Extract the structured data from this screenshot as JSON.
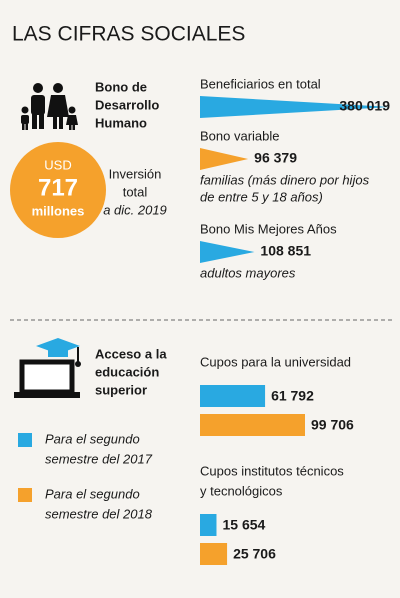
{
  "title": "LAS CIFRAS SOCIALES",
  "bono": {
    "name_lines": [
      "Bono de",
      "Desarrollo",
      "Humano"
    ],
    "investment": {
      "currency": "USD",
      "amount": 717,
      "unit": "millones"
    },
    "investment_note_lines": [
      "Inversión",
      "total",
      "a dic. 2019"
    ]
  },
  "beneficiaries": [
    {
      "label": "Beneficiarios en total",
      "value": {
        "value": 380019,
        "label": "380 019"
      },
      "color": "#29a9e1",
      "note_lines": []
    },
    {
      "label": "Bono variable",
      "value": {
        "value": 96379,
        "label": "96 379"
      },
      "color": "#f5a12c",
      "note_lines": [
        "familias (más dinero por hijos",
        "de entre 5 y 18 años)"
      ]
    },
    {
      "label": "Bono Mis Mejores Años",
      "value": {
        "value": 108851,
        "label": "108 851"
      },
      "color": "#29a9e1",
      "note_lines": [
        "adultos mayores"
      ]
    }
  ],
  "education": {
    "title_lines": [
      "Acceso a la",
      "educación",
      "superior"
    ],
    "legend": [
      {
        "lines": [
          "Para el segundo",
          "semestre del 2017"
        ],
        "color": "#29a9e1"
      },
      {
        "lines": [
          "Para el segundo",
          "semestre del 2018"
        ],
        "color": "#f5a12c"
      }
    ],
    "groups": [
      {
        "label_lines": [
          "Cupos para la universidad"
        ],
        "values": [
          {
            "value": 61792,
            "label": "61 792"
          },
          {
            "value": 99706,
            "label": "99 706"
          }
        ]
      },
      {
        "label_lines": [
          "Cupos institutos técnicos",
          "y tecnológicos"
        ],
        "values": [
          {
            "value": 15654,
            "label": "15 654"
          },
          {
            "value": 25706,
            "label": "25 706"
          }
        ]
      }
    ]
  }
}
